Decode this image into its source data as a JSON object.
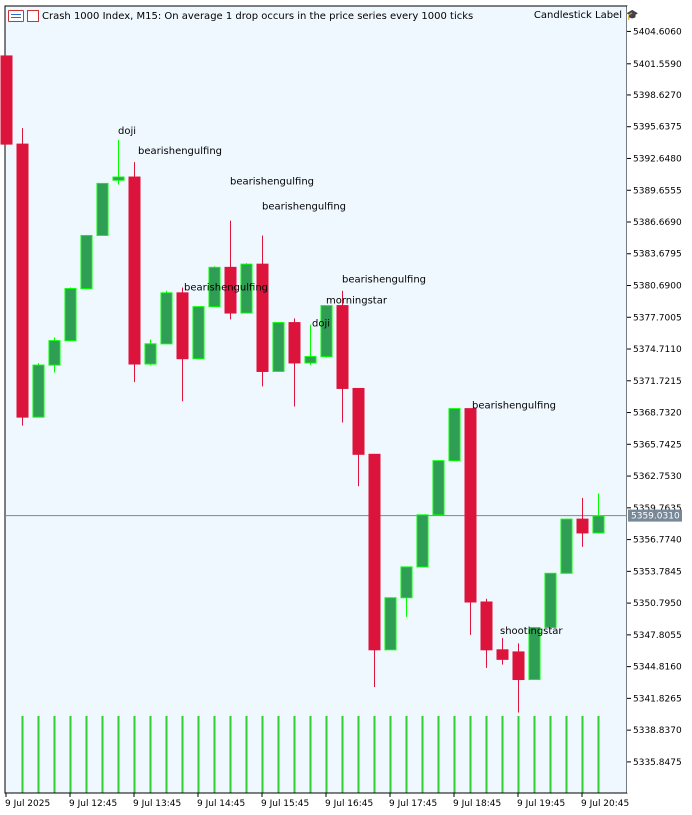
{
  "header": {
    "title": "Crash 1000 Index, M15:  On average 1 drop occurs in the price series every 1000 ticks",
    "indicator": "Candlestick Label"
  },
  "current_price": "5359.0310",
  "colors": {
    "background": "#f0f8ff",
    "bull": "#2e9e54",
    "bull_border": "#00ff00",
    "bear": "#dc143c",
    "price_line": "#778899",
    "volume": "#32cd32"
  },
  "chart_data": {
    "type": "candlestick",
    "price_range": [
      5332.92,
      5407.0
    ],
    "price_ticks": [
      "5404.6060",
      "5401.5590",
      "5398.6270",
      "5395.6375",
      "5392.6480",
      "5389.6555",
      "5386.6690",
      "5383.6795",
      "5380.6900",
      "5377.7005",
      "5374.7110",
      "5371.7215",
      "5368.7320",
      "5365.7425",
      "5362.7530",
      "5359.7635",
      "5356.7740",
      "5353.7845",
      "5350.7950",
      "5347.8055",
      "5344.8160",
      "5341.8265",
      "5338.8370",
      "5335.8475"
    ],
    "time_labels": [
      "9 Jul 2025",
      "9 Jul 12:45",
      "9 Jul 13:45",
      "9 Jul 14:45",
      "9 Jul 15:45",
      "9 Jul 16:45",
      "9 Jul 17:45",
      "9 Jul 18:45",
      "9 Jul 19:45",
      "9 Jul 20:45"
    ],
    "candles": [
      {
        "o": 5402.3,
        "h": 5402.3,
        "l": 5394.0,
        "c": 5394.0
      },
      {
        "o": 5394.0,
        "h": 5395.5,
        "l": 5367.5,
        "c": 5368.3
      },
      {
        "o": 5368.3,
        "h": 5373.4,
        "l": 5368.3,
        "c": 5373.2
      },
      {
        "o": 5373.2,
        "h": 5375.8,
        "l": 5372.5,
        "c": 5375.5
      },
      {
        "o": 5375.5,
        "h": 5380.5,
        "l": 5375.5,
        "c": 5380.4
      },
      {
        "o": 5380.4,
        "h": 5385.4,
        "l": 5380.4,
        "c": 5385.4
      },
      {
        "o": 5385.4,
        "h": 5390.3,
        "l": 5385.4,
        "c": 5390.3
      },
      {
        "o": 5390.6,
        "h": 5394.4,
        "l": 5390.2,
        "c": 5390.9
      },
      {
        "o": 5390.9,
        "h": 5392.3,
        "l": 5371.6,
        "c": 5373.3
      },
      {
        "o": 5373.3,
        "h": 5375.6,
        "l": 5373.2,
        "c": 5375.2
      },
      {
        "o": 5375.2,
        "h": 5380.2,
        "l": 5375.2,
        "c": 5380.0
      },
      {
        "o": 5380.0,
        "h": 5380.5,
        "l": 5369.8,
        "c": 5373.8
      },
      {
        "o": 5373.8,
        "h": 5378.7,
        "l": 5373.8,
        "c": 5378.7
      },
      {
        "o": 5378.7,
        "h": 5382.5,
        "l": 5378.7,
        "c": 5382.4
      },
      {
        "o": 5382.4,
        "h": 5386.8,
        "l": 5377.5,
        "c": 5378.1
      },
      {
        "o": 5378.1,
        "h": 5382.8,
        "l": 5378.1,
        "c": 5382.7
      },
      {
        "o": 5382.7,
        "h": 5385.4,
        "l": 5371.2,
        "c": 5372.6
      },
      {
        "o": 5372.6,
        "h": 5377.2,
        "l": 5372.6,
        "c": 5377.2
      },
      {
        "o": 5377.2,
        "h": 5377.6,
        "l": 5369.3,
        "c": 5373.4
      },
      {
        "o": 5373.4,
        "h": 5377.0,
        "l": 5373.2,
        "c": 5374.0
      },
      {
        "o": 5374.0,
        "h": 5378.8,
        "l": 5373.9,
        "c": 5378.8
      },
      {
        "o": 5378.8,
        "h": 5380.2,
        "l": 5367.8,
        "c": 5371.0
      },
      {
        "o": 5371.0,
        "h": 5371.0,
        "l": 5361.8,
        "c": 5364.8
      },
      {
        "o": 5364.8,
        "h": 5364.8,
        "l": 5342.9,
        "c": 5346.4
      },
      {
        "o": 5346.4,
        "h": 5351.3,
        "l": 5346.4,
        "c": 5351.3
      },
      {
        "o": 5351.3,
        "h": 5354.2,
        "l": 5349.5,
        "c": 5354.2
      },
      {
        "o": 5354.2,
        "h": 5359.1,
        "l": 5354.2,
        "c": 5359.1
      },
      {
        "o": 5359.1,
        "h": 5364.2,
        "l": 5359.1,
        "c": 5364.2
      },
      {
        "o": 5364.2,
        "h": 5369.1,
        "l": 5364.2,
        "c": 5369.1
      },
      {
        "o": 5369.1,
        "h": 5369.1,
        "l": 5347.8,
        "c": 5350.9
      },
      {
        "o": 5350.9,
        "h": 5351.2,
        "l": 5344.7,
        "c": 5346.4
      },
      {
        "o": 5346.4,
        "h": 5347.5,
        "l": 5345.0,
        "c": 5345.5
      },
      {
        "o": 5346.2,
        "h": 5347.0,
        "l": 5340.5,
        "c": 5343.6
      },
      {
        "o": 5343.6,
        "h": 5348.5,
        "l": 5343.6,
        "c": 5348.5
      },
      {
        "o": 5348.5,
        "h": 5353.6,
        "l": 5348.5,
        "c": 5353.6
      },
      {
        "o": 5353.6,
        "h": 5358.7,
        "l": 5353.6,
        "c": 5358.7
      },
      {
        "o": 5358.7,
        "h": 5360.7,
        "l": 5356.1,
        "c": 5357.4
      },
      {
        "o": 5357.4,
        "h": 5361.1,
        "l": 5357.4,
        "c": 5359.0
      }
    ],
    "labels": [
      {
        "candle": 7,
        "text": "doji"
      },
      {
        "candle": 8,
        "text": "bearishengulfing"
      },
      {
        "candle": 14,
        "text": "bearishengulfing"
      },
      {
        "candle": 16,
        "text": "bearishengulfing"
      },
      {
        "candle": 11,
        "text": "bearishengulfing"
      },
      {
        "candle": 21,
        "text": "bearishengulfing"
      },
      {
        "candle": 19,
        "text": "doji"
      },
      {
        "candle": 20,
        "text": "morningstar"
      },
      {
        "candle": 29,
        "text": "bearishengulfing"
      },
      {
        "candle": 31,
        "text": "shootingstar"
      }
    ]
  }
}
